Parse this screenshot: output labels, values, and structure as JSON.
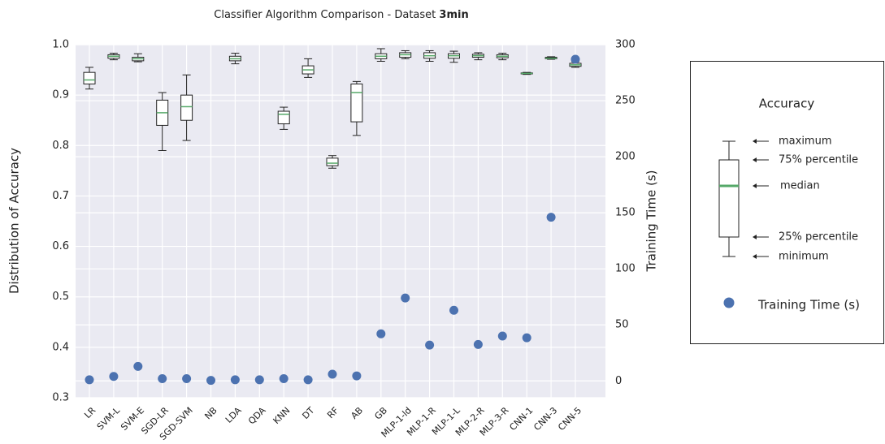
{
  "chart_data": {
    "type": "box",
    "title": "Classifier Algorithm Comparison - Dataset",
    "title_emphasis": "3min",
    "y_label": "Distribution of Accuracy",
    "y2_label": "Training Time (s)",
    "categories": [
      "LR",
      "SVM-L",
      "SVM-E",
      "SGD-LR",
      "SGD-SVM",
      "NB",
      "LDA",
      "QDA",
      "KNN",
      "DT",
      "RF",
      "AB",
      "GB",
      "MLP-1-ld",
      "MLP-1-R",
      "MLP-1-L",
      "MLP-2-R",
      "MLP-3-R",
      "CNN-1",
      "CNN-3",
      "CNN-5"
    ],
    "ylim": [
      0.3,
      1.0
    ],
    "yticks": [
      0.3,
      0.4,
      0.5,
      0.6,
      0.7,
      0.8,
      0.9,
      {
        "value": 1,
        "label": "1.0"
      }
    ],
    "y2lim": [
      -15,
      300
    ],
    "y2ticks": [
      0,
      50,
      100,
      150,
      200,
      250,
      300
    ],
    "grid": true,
    "box_parts": [
      "maximum",
      "75% percentile",
      "median",
      "25% percentile",
      "minimum"
    ],
    "series": [
      {
        "name": "Accuracy",
        "color": "#55a868",
        "boxes": [
          {
            "min": 0.912,
            "q1": 0.922,
            "median": 0.93,
            "q3": 0.945,
            "max": 0.955
          },
          {
            "min": 0.97,
            "q1": 0.973,
            "median": 0.977,
            "q3": 0.98,
            "max": 0.983
          },
          {
            "min": 0.966,
            "q1": 0.968,
            "median": 0.972,
            "q3": 0.975,
            "max": 0.982
          },
          {
            "min": 0.79,
            "q1": 0.84,
            "median": 0.865,
            "q3": 0.89,
            "max": 0.905
          },
          {
            "min": 0.81,
            "q1": 0.85,
            "median": 0.877,
            "q3": 0.9,
            "max": 0.94
          },
          null,
          {
            "min": 0.962,
            "q1": 0.968,
            "median": 0.972,
            "q3": 0.977,
            "max": 0.983
          },
          null,
          {
            "min": 0.832,
            "q1": 0.843,
            "median": 0.862,
            "q3": 0.868,
            "max": 0.876
          },
          {
            "min": 0.935,
            "q1": 0.942,
            "median": 0.95,
            "q3": 0.958,
            "max": 0.972
          },
          {
            "min": 0.755,
            "q1": 0.76,
            "median": 0.765,
            "q3": 0.775,
            "max": 0.78
          },
          {
            "min": 0.82,
            "q1": 0.847,
            "median": 0.905,
            "q3": 0.922,
            "max": 0.927
          },
          {
            "min": 0.967,
            "q1": 0.972,
            "median": 0.977,
            "q3": 0.982,
            "max": 0.992
          },
          {
            "min": 0.972,
            "q1": 0.975,
            "median": 0.98,
            "q3": 0.984,
            "max": 0.988
          },
          {
            "min": 0.967,
            "q1": 0.973,
            "median": 0.978,
            "q3": 0.984,
            "max": 0.988
          },
          {
            "min": 0.965,
            "q1": 0.973,
            "median": 0.978,
            "q3": 0.982,
            "max": 0.987
          },
          {
            "min": 0.97,
            "q1": 0.975,
            "median": 0.978,
            "q3": 0.981,
            "max": 0.984
          },
          {
            "min": 0.97,
            "q1": 0.974,
            "median": 0.977,
            "q3": 0.98,
            "max": 0.983
          },
          {
            "min": 0.941,
            "q1": 0.942,
            "median": 0.943,
            "q3": 0.944,
            "max": 0.945
          },
          {
            "min": 0.971,
            "q1": 0.972,
            "median": 0.973,
            "q3": 0.975,
            "max": 0.976
          },
          {
            "min": 0.955,
            "q1": 0.957,
            "median": 0.96,
            "q3": 0.963,
            "max": 0.966
          }
        ]
      },
      {
        "name": "Training Time (s)",
        "color": "#4c72b0",
        "axis": "y2",
        "values": [
          1,
          4,
          13,
          2,
          2,
          0.5,
          1,
          1,
          2,
          1,
          6,
          4.5,
          42,
          74,
          32,
          63,
          32.5,
          40,
          38.5,
          146,
          287
        ]
      }
    ]
  }
}
